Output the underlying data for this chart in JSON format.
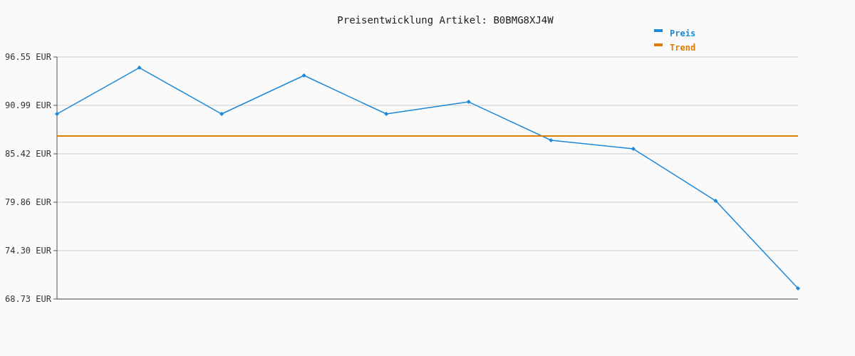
{
  "chart_data": {
    "type": "line",
    "title": "Preisentwicklung Artikel: B0BMG8XJ4W",
    "categories": [
      null,
      null,
      null,
      null,
      null,
      null,
      null,
      null,
      null,
      null
    ],
    "series": [
      {
        "name": "Preis",
        "color": "#1e88d8",
        "marker": "diamond",
        "values": [
          90.0,
          95.32,
          90.0,
          94.42,
          90.0,
          91.39,
          86.98,
          85.99,
          80.02,
          69.95
        ]
      },
      {
        "name": "Trend",
        "color": "#e07b00",
        "marker": "none",
        "values": [
          87.47,
          87.47,
          87.47,
          87.47,
          87.47,
          87.47,
          87.47,
          87.47,
          87.47,
          87.47
        ]
      }
    ],
    "ylim": [
      68.73,
      96.55
    ],
    "yticks": [
      {
        "value": 68.73,
        "label": "68.73 EUR"
      },
      {
        "value": 74.3,
        "label": "74.30 EUR"
      },
      {
        "value": 79.86,
        "label": "79.86 EUR"
      },
      {
        "value": 85.42,
        "label": "85.42 EUR"
      },
      {
        "value": 90.99,
        "label": "90.99 EUR"
      },
      {
        "value": 96.55,
        "label": "96.55 EUR"
      }
    ],
    "grid": "y",
    "legend": "top right",
    "tick_labels": "y"
  }
}
